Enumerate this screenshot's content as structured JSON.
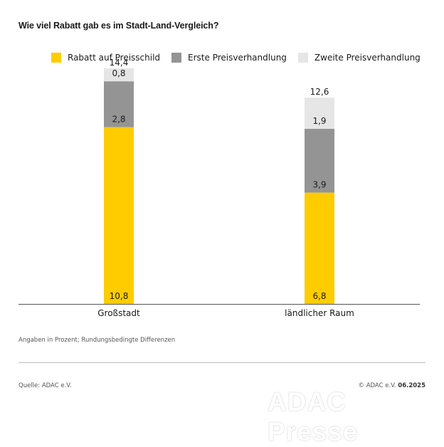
{
  "chart_data": {
    "type": "bar",
    "stacked": true,
    "title": "Wie viel Rabatt gab es im Stadt-Land-Vergleich?",
    "categories": [
      "Großstadt",
      "ländlicher Raum"
    ],
    "series": [
      {
        "name": "Rabatt auf Preisschild",
        "values": [
          10.8,
          6.8
        ],
        "labels": [
          "10,8",
          "6,8"
        ],
        "color": "#ffcc00"
      },
      {
        "name": "Erste Preisverhandlung",
        "values": [
          2.8,
          3.9
        ],
        "labels": [
          "2,8",
          "3,9"
        ],
        "color": "#949494"
      },
      {
        "name": "Zweite Preisverhandlung",
        "values": [
          0.8,
          1.9
        ],
        "labels": [
          "0,8",
          "1,9"
        ],
        "color": "#e6e6e6"
      }
    ],
    "totals": [
      14.4,
      12.6
    ],
    "total_labels": [
      "14,4",
      "12,6"
    ],
    "ylim": [
      0,
      16
    ],
    "grid": false,
    "legend_position": "top",
    "note": "Angaben in Prozent; Rundungsbedingte Differenzen"
  },
  "footer": {
    "source": "Quelle: ADAC e.V.",
    "copyright": "© ADAC e.V.",
    "date": "06.2025",
    "watermark": "ADAC Presse"
  }
}
